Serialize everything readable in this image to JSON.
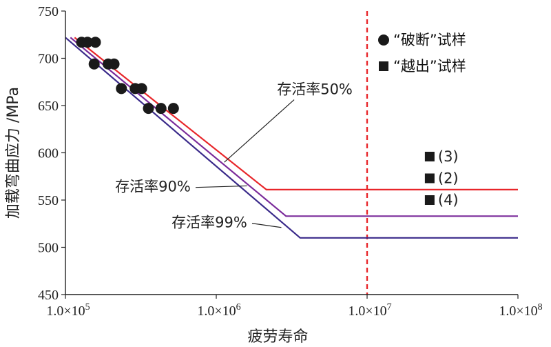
{
  "chart_data": {
    "type": "line",
    "xlabel": "疲劳寿命",
    "ylabel": "加载弯曲应力 /MPa",
    "x_scale": "log",
    "xlim": [
      100000,
      100000000
    ],
    "ylim": [
      450,
      750
    ],
    "x_ticks": [
      {
        "value": 100000,
        "label": "1.0×10",
        "exp": "5"
      },
      {
        "value": 1000000,
        "label": "1.0×10",
        "exp": "6"
      },
      {
        "value": 10000000,
        "label": "1.0×10",
        "exp": "7"
      },
      {
        "value": 100000000,
        "label": "1.0×10",
        "exp": "8"
      }
    ],
    "y_ticks": [
      {
        "value": 450,
        "label": "450"
      },
      {
        "value": 500,
        "label": "500"
      },
      {
        "value": 550,
        "label": "550"
      },
      {
        "value": 600,
        "label": "600"
      },
      {
        "value": 650,
        "label": "650"
      },
      {
        "value": 700,
        "label": "700"
      },
      {
        "value": 750,
        "label": "750"
      }
    ],
    "curves": [
      {
        "id": "s50",
        "label": "存活率50%",
        "color": "#e8262a",
        "points": [
          [
            115000,
            722
          ],
          [
            2150000,
            561
          ],
          [
            100000000,
            561
          ]
        ]
      },
      {
        "id": "s90",
        "label": "存活率90%",
        "color": "#7a2a9a",
        "points": [
          [
            108000,
            722
          ],
          [
            2900000,
            533
          ],
          [
            100000000,
            533
          ]
        ]
      },
      {
        "id": "s99",
        "label": "存活率99%",
        "color": "#3a2a8a",
        "points": [
          [
            100000,
            722
          ],
          [
            3600000,
            510
          ],
          [
            100000000,
            510
          ]
        ]
      }
    ],
    "annotations": [
      {
        "curve": "s50",
        "label_at": [
          4500000,
          662
        ],
        "arrow_to": [
          1130000,
          590
        ]
      },
      {
        "curve": "s90",
        "label_at": [
          380000,
          559
        ],
        "arrow_to": [
          1600000,
          565
        ]
      },
      {
        "curve": "s99",
        "label_at": [
          900000,
          521
        ],
        "arrow_to": [
          2700000,
          521
        ]
      }
    ],
    "threshold": {
      "x": 10000000,
      "color": "#e8262a",
      "style": "dashed"
    },
    "fracture_points": [
      [
        128000,
        717
      ],
      [
        140000,
        717
      ],
      [
        158000,
        717
      ],
      [
        155000,
        694
      ],
      [
        192000,
        694
      ],
      [
        210000,
        694
      ],
      [
        235000,
        668
      ],
      [
        290000,
        668
      ],
      [
        320000,
        668
      ],
      [
        355000,
        647
      ],
      [
        430000,
        647
      ],
      [
        520000,
        647
      ]
    ],
    "runout_points": [
      {
        "label": "(3)",
        "x": 26000000,
        "y": 596
      },
      {
        "label": "(2)",
        "x": 26000000,
        "y": 573
      },
      {
        "label": "(4)",
        "x": 26000000,
        "y": 550
      }
    ],
    "legend": {
      "position": "top-right",
      "items": [
        {
          "marker": "circle",
          "label": "“破断”试样"
        },
        {
          "marker": "square",
          "label": "“越出”试样"
        }
      ]
    }
  }
}
